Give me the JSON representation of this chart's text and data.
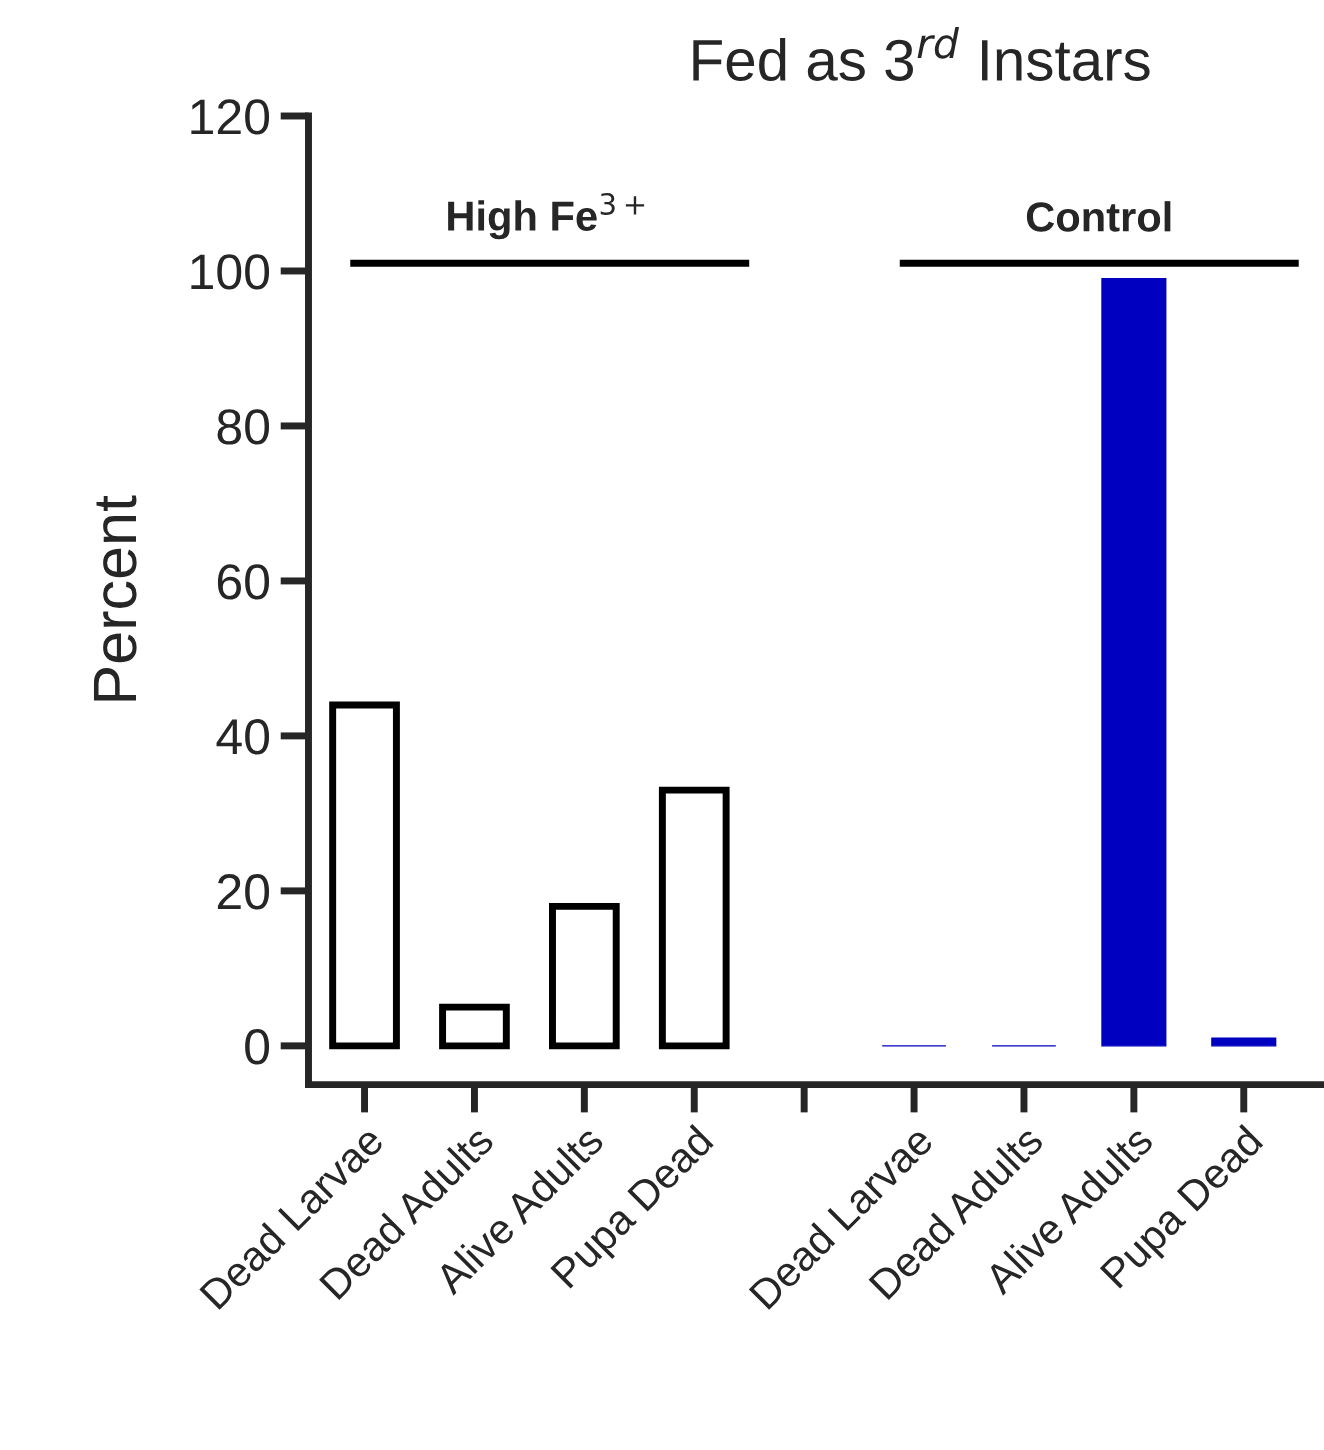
{
  "chart_data": {
    "type": "bar",
    "title": "Fed as 3$^{rd}$ Instars",
    "ylabel": "Percent",
    "categories": [
      "Dead Larvae",
      "Dead Adults",
      "Alive Adults",
      "Pupa Dead",
      null,
      "Dead Larvae",
      "Dead Adults",
      "Alive Adults",
      "Pupa Dead"
    ],
    "values": [
      44,
      5,
      18,
      33,
      null,
      0,
      0,
      99,
      1
    ],
    "colors": [
      "#ffffff",
      "#ffffff",
      "#ffffff",
      "#ffffff",
      "#ffffff",
      "#0000c0",
      "#0000c0",
      "#0000c0",
      "#0000c0"
    ],
    "ylim": [
      -5,
      120
    ],
    "yticks": [
      0,
      20,
      40,
      60,
      80,
      100,
      120
    ],
    "annotations": [
      "High Fe$^{3+}$",
      "Control"
    ],
    "grid": false,
    "legend": false
  }
}
